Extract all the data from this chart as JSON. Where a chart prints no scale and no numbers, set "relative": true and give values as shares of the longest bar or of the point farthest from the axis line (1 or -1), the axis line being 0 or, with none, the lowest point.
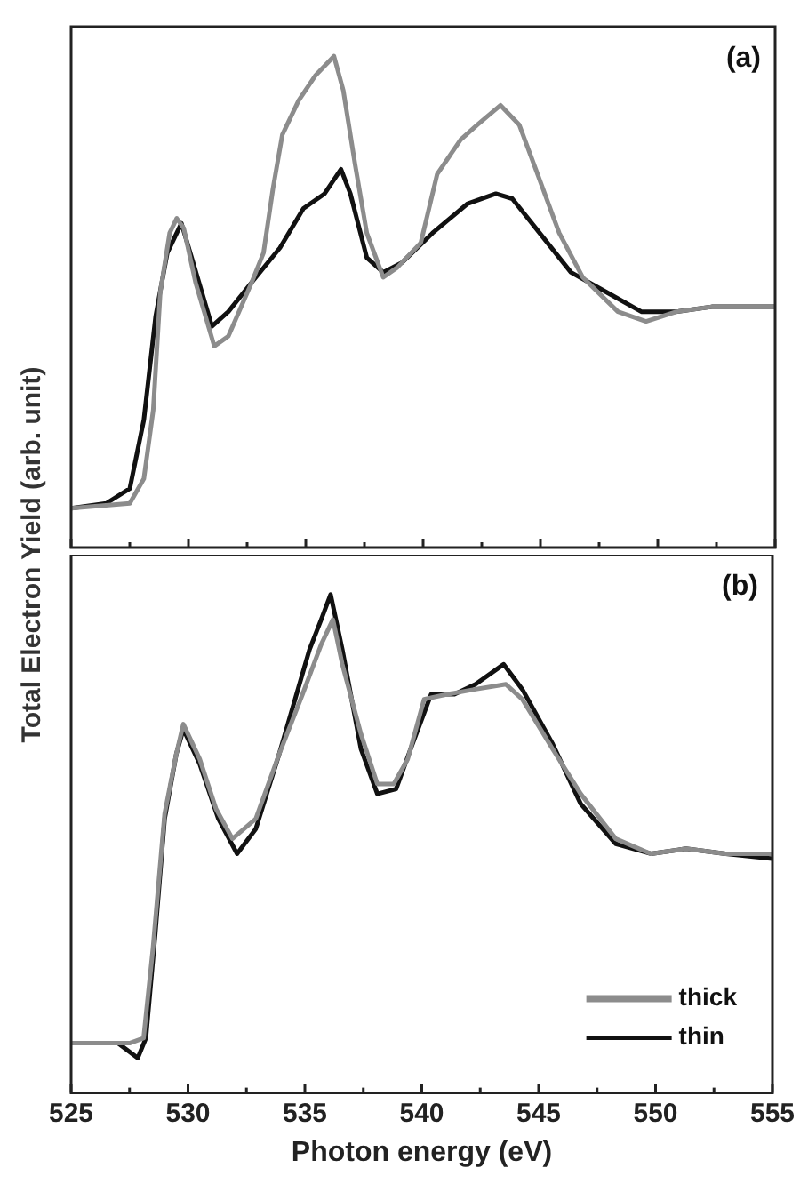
{
  "chart_data": [
    {
      "type": "line",
      "relative": true,
      "ylabel": "Total Electron Yield (arb. unit)",
      "xlim": [
        525,
        555
      ],
      "xticks": [
        525,
        {
          "value": 527.5,
          "label": null
        },
        530,
        {
          "value": 532.5,
          "label": null
        },
        535,
        {
          "value": 537.5,
          "label": null
        },
        540,
        {
          "value": 542.5,
          "label": null
        },
        545,
        {
          "value": 547.5,
          "label": null
        },
        550,
        {
          "value": 552.5,
          "label": null
        },
        555
      ],
      "tick_labels": false,
      "legend": false,
      "annotations": [
        "(a)"
      ],
      "series": [
        {
          "color": "#8c8c8c",
          "x": [
            525,
            527.5,
            528.1,
            528.5,
            528.8,
            529.2,
            529.5,
            529.8,
            530.3,
            531.1,
            531.7,
            532.7,
            533.2,
            533.6,
            534,
            534.7,
            535.4,
            536.2,
            536.6,
            537.1,
            537.6,
            538.3,
            538.9,
            539.9,
            540.6,
            541.6,
            542.3,
            543.3,
            544.1,
            544.8,
            545.8,
            546.8,
            548.3,
            549.5,
            550.8,
            552.3,
            555
          ],
          "values": [
            0.08,
            0.09,
            0.14,
            0.28,
            0.52,
            0.64,
            0.67,
            0.65,
            0.54,
            0.41,
            0.43,
            0.54,
            0.6,
            0.73,
            0.84,
            0.91,
            0.96,
            1,
            0.93,
            0.78,
            0.64,
            0.55,
            0.57,
            0.62,
            0.76,
            0.83,
            0.86,
            0.9,
            0.86,
            0.77,
            0.64,
            0.55,
            0.48,
            0.46,
            0.48,
            0.49,
            0.49
          ]
        },
        {
          "color": "#111111",
          "x": [
            525,
            526.5,
            527.5,
            528.1,
            528.6,
            529.1,
            529.7,
            530.2,
            531,
            531.7,
            532.7,
            533.9,
            534.9,
            535.8,
            536.5,
            536.9,
            537.6,
            538.3,
            539.1,
            540.4,
            541.9,
            543.1,
            543.8,
            544.8,
            546.3,
            547.8,
            549.3,
            550.8,
            552.3,
            555
          ],
          "values": [
            0.08,
            0.09,
            0.12,
            0.26,
            0.47,
            0.6,
            0.66,
            0.58,
            0.45,
            0.48,
            0.54,
            0.61,
            0.69,
            0.72,
            0.77,
            0.72,
            0.59,
            0.56,
            0.58,
            0.64,
            0.7,
            0.72,
            0.71,
            0.65,
            0.56,
            0.52,
            0.48,
            0.48,
            0.49,
            0.49
          ]
        }
      ]
    },
    {
      "type": "line",
      "relative": true,
      "xlabel": "Photon energy (eV)",
      "xlim": [
        525,
        555
      ],
      "xticks": [
        525,
        {
          "value": 527.5,
          "label": null
        },
        530,
        {
          "value": 532.5,
          "label": null
        },
        535,
        {
          "value": 537.5,
          "label": null
        },
        540,
        {
          "value": 542.5,
          "label": null
        },
        545,
        {
          "value": 547.5,
          "label": null
        },
        550,
        {
          "value": 552.5,
          "label": null
        },
        555
      ],
      "tick_labels": "x",
      "legend": "bottom right",
      "annotations": [
        "(b)"
      ],
      "series": [
        {
          "name": "thick",
          "color": "#8c8c8c",
          "x": [
            525,
            527.5,
            528.1,
            528.5,
            529,
            529.5,
            529.8,
            530.5,
            531.2,
            531.9,
            532.9,
            533.9,
            534.9,
            535.7,
            536.2,
            536.6,
            537.4,
            538.1,
            538.8,
            539.4,
            540.1,
            541.1,
            542.3,
            543.6,
            544.3,
            545.6,
            546.8,
            548.3,
            549.8,
            551.3,
            553,
            555
          ],
          "values": [
            0.1,
            0.1,
            0.11,
            0.29,
            0.56,
            0.68,
            0.74,
            0.67,
            0.57,
            0.51,
            0.55,
            0.68,
            0.8,
            0.9,
            0.95,
            0.86,
            0.72,
            0.62,
            0.62,
            0.67,
            0.79,
            0.8,
            0.81,
            0.82,
            0.79,
            0.69,
            0.6,
            0.51,
            0.48,
            0.49,
            0.48,
            0.48
          ]
        },
        {
          "name": "thin",
          "color": "#111111",
          "x": [
            525,
            527,
            527.85,
            528.2,
            528.6,
            529,
            529.5,
            529.8,
            530.5,
            531.3,
            532.1,
            532.9,
            533.9,
            535.2,
            535.7,
            536.1,
            536.6,
            537.4,
            538.1,
            538.9,
            539.6,
            540.4,
            541.4,
            542.3,
            543.5,
            544.3,
            545.6,
            546.8,
            548.3,
            549.8,
            551.3,
            553,
            555
          ],
          "values": [
            0.1,
            0.1,
            0.07,
            0.11,
            0.32,
            0.55,
            0.68,
            0.73,
            0.66,
            0.55,
            0.48,
            0.53,
            0.68,
            0.89,
            0.95,
            1,
            0.89,
            0.69,
            0.6,
            0.61,
            0.7,
            0.8,
            0.8,
            0.82,
            0.86,
            0.81,
            0.7,
            0.58,
            0.5,
            0.48,
            0.49,
            0.48,
            0.47
          ]
        }
      ]
    }
  ]
}
